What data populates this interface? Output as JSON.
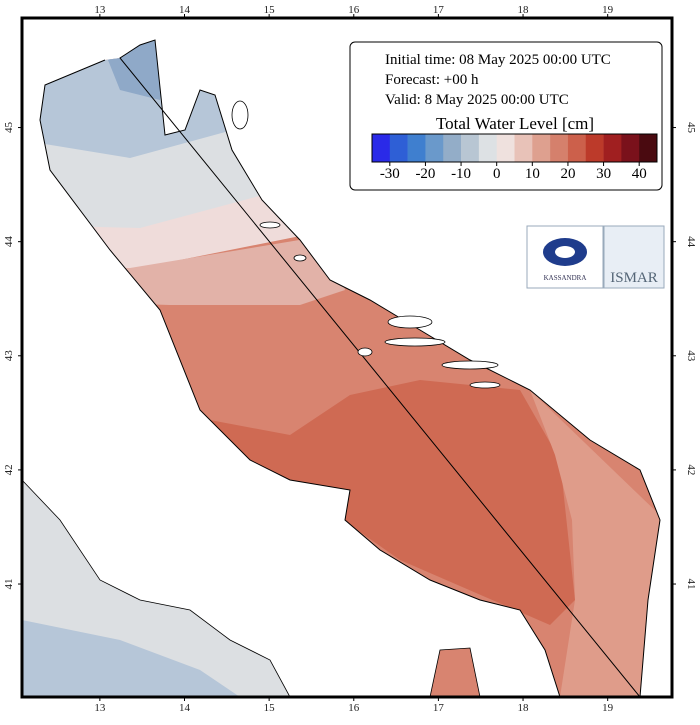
{
  "map": {
    "lon_ticks": [
      13,
      14,
      15,
      16,
      17,
      18,
      19
    ],
    "lat_ticks": [
      41,
      42,
      43,
      44,
      45
    ],
    "xlim": [
      12.08,
      19.76
    ],
    "ylim": [
      40.01,
      45.96
    ],
    "legend": {
      "initial_time": "Initial time: 08 May 2025 00:00 UTC",
      "forecast": "Forecast: +00 h",
      "valid": "Valid:  8 May 2025 00:00 UTC",
      "title": "Total Water Level [cm]",
      "range": [
        -35,
        45
      ],
      "ticks": [
        -30,
        -20,
        -10,
        0,
        10,
        20,
        30,
        40
      ],
      "colors": [
        "#2a2ae8",
        "#2e5fd6",
        "#3f7fcf",
        "#6a99cb",
        "#93adc8",
        "#b8c6d3",
        "#dde1e4",
        "#efe1de",
        "#e8c2b8",
        "#dea08f",
        "#d5806c",
        "#cc604b",
        "#bc3a2a",
        "#a01f20",
        "#7a111b",
        "#4a0a10"
      ]
    },
    "logos": {
      "left": "KASSANDRA",
      "right": "ISMAR"
    }
  }
}
